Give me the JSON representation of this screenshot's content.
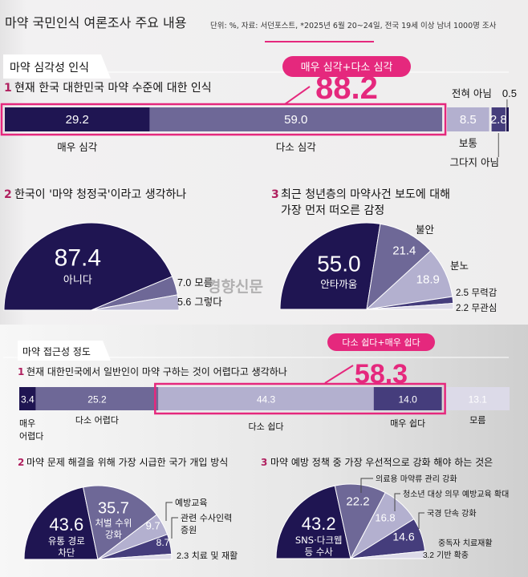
{
  "header": {
    "title": "마약 국민인식 여론조사 주요 내용",
    "note": "단위: %, 자료: 서던포스트, *2025년 6월 20~24일, 전국 19세 이상 남녀 1000명 조사"
  },
  "watermark": "경향신문",
  "colors": {
    "accent_pink": "#e5287d",
    "number_mark": "#b0205f",
    "navy": "#1f1552",
    "medium": "#6e6897",
    "light": "#b3b0cf",
    "dark_purple": "#453d7c",
    "lightest": "#dcdae8"
  },
  "sections": [
    {
      "label": "마약 심각성 인식",
      "highlight_label": "매우 심각+다소 심각",
      "highlight_value": "88.2"
    },
    {
      "label": "마약 접근성 정도",
      "highlight_label": "다소 쉽다+매우 쉽다",
      "highlight_value": "58.3"
    }
  ],
  "chart_data": [
    {
      "type": "bar",
      "number": "1",
      "title": "현재 한국 대한민국 마약 수준에 대한 인식",
      "categories": [
        "매우 심각",
        "다소 심각",
        "보통",
        "그다지 아님",
        "전혀 아님"
      ],
      "values": [
        29.2,
        59.0,
        8.5,
        2.8,
        0.5
      ],
      "value_labels": [
        "29.2",
        "59.0",
        "8.5",
        "2.8",
        "0.5"
      ],
      "unit": "%"
    },
    {
      "type": "pie",
      "style": "half",
      "number": "2",
      "title": "한국이 '마약 청정국'이라고 생각하나",
      "categories": [
        "아니다",
        "모름",
        "그렇다"
      ],
      "values": [
        87.4,
        7.0,
        5.6
      ],
      "value_labels": [
        "87.4",
        "7.0",
        "5.6"
      ]
    },
    {
      "type": "pie",
      "style": "half",
      "number": "3",
      "title": "최근 청년층의 마약사건 보도에 대해 가장 먼저 떠오른 감정",
      "categories": [
        "안타까움",
        "불안",
        "분노",
        "무력감",
        "무관심"
      ],
      "values": [
        55.0,
        21.4,
        18.9,
        2.5,
        2.2
      ],
      "value_labels": [
        "55.0",
        "21.4",
        "18.9",
        "2.5",
        "2.2"
      ]
    },
    {
      "type": "bar",
      "number": "1",
      "title": "현재 대한민국에서 일반인이 마약 구하는 것이 어렵다고 생각하나",
      "categories": [
        "매우 어렵다",
        "다소 어렵다",
        "다소 쉽다",
        "매우 쉽다",
        "모름"
      ],
      "values": [
        3.4,
        25.2,
        44.3,
        14.0,
        13.1
      ],
      "value_labels": [
        "3.4",
        "25.2",
        "44.3",
        "14.0",
        "13.1"
      ],
      "unit": "%"
    },
    {
      "type": "pie",
      "style": "half",
      "number": "2",
      "title": "마약 문제 해결을 위해 가장 시급한 국가 개입 방식",
      "categories": [
        "유통 경로 차단",
        "처벌 수위 강화",
        "예방교육",
        "관련 수사인력 증원",
        "치료 및 재활"
      ],
      "values": [
        43.6,
        35.7,
        9.7,
        8.7,
        2.3
      ],
      "value_labels": [
        "43.6",
        "35.7",
        "9.7",
        "8.7",
        "2.3"
      ]
    },
    {
      "type": "pie",
      "style": "half",
      "number": "3",
      "title": "마약 예방 정책 중 가장 우선적으로 강화 해야 하는 것은",
      "categories": [
        "SNS·다크웹 등 수사",
        "의료용 마약류 관리 강화",
        "청소년 대상 의무 예방교육 확대",
        "국경 단속 강화",
        "중독자 치료재활 기반 확충"
      ],
      "values": [
        43.2,
        22.2,
        16.8,
        14.6,
        3.2
      ],
      "value_labels": [
        "43.2",
        "22.2",
        "16.8",
        "14.6",
        "3.2"
      ]
    }
  ]
}
